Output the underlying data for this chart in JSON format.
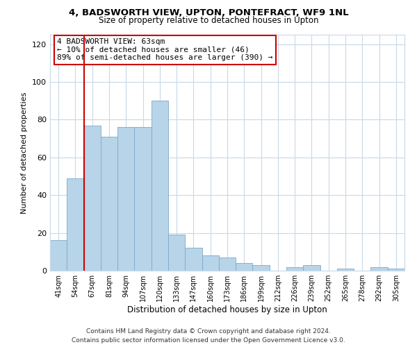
{
  "title": "4, BADSWORTH VIEW, UPTON, PONTEFRACT, WF9 1NL",
  "subtitle": "Size of property relative to detached houses in Upton",
  "xlabel": "Distribution of detached houses by size in Upton",
  "ylabel": "Number of detached properties",
  "bar_labels": [
    "41sqm",
    "54sqm",
    "67sqm",
    "81sqm",
    "94sqm",
    "107sqm",
    "120sqm",
    "133sqm",
    "147sqm",
    "160sqm",
    "173sqm",
    "186sqm",
    "199sqm",
    "212sqm",
    "226sqm",
    "239sqm",
    "252sqm",
    "265sqm",
    "278sqm",
    "292sqm",
    "305sqm"
  ],
  "bar_values": [
    16,
    49,
    77,
    71,
    76,
    76,
    90,
    19,
    12,
    8,
    7,
    4,
    3,
    0,
    2,
    3,
    0,
    1,
    0,
    2,
    1
  ],
  "bar_color": "#b8d4e8",
  "bar_edge_color": "#7aaac8",
  "vline_x": 1.5,
  "vline_color": "#cc0000",
  "annotation_text": "4 BADSWORTH VIEW: 63sqm\n← 10% of detached houses are smaller (46)\n89% of semi-detached houses are larger (390) →",
  "annotation_box_color": "#ffffff",
  "annotation_box_edge": "#cc0000",
  "ylim": [
    0,
    125
  ],
  "yticks": [
    0,
    20,
    40,
    60,
    80,
    100,
    120
  ],
  "footnote": "Contains HM Land Registry data © Crown copyright and database right 2024.\nContains public sector information licensed under the Open Government Licence v3.0.",
  "bg_color": "#ffffff",
  "grid_color": "#c8d8e8"
}
